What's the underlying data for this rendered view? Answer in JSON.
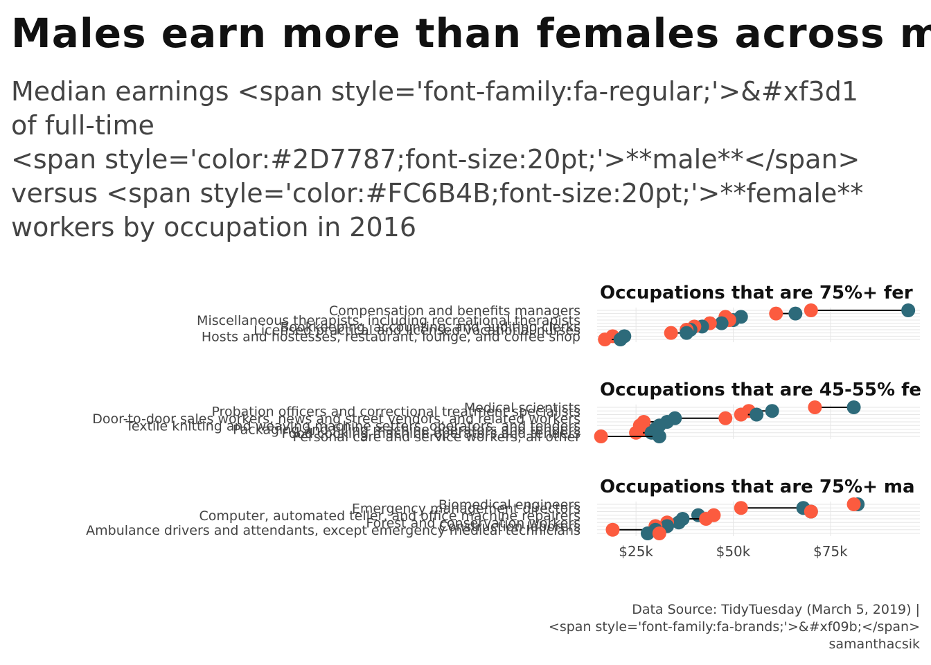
{
  "title": "Males earn more than females across mos",
  "subtitle_lines": [
    "Median earnings <span style='font-family:fa-regular;'>&#xf3d1",
    "of full-time",
    "<span style='color:#2D7787;font-size:20pt;'>**male**</span>",
    "versus <span style='color:#FC6B4B;font-size:20pt;'>**female**",
    "workers by occupation in 2016"
  ],
  "caption_lines": [
    "Data Source: TidyTuesday (March 5, 2019) |",
    "<span style='font-family:fa-brands;'>&#xf09b;</span>",
    "samanthacsik"
  ],
  "colors": {
    "male": "#2D6A7A",
    "female": "#FC5B3F",
    "grid": "#e6e6e6",
    "segment": "#000000"
  },
  "chart_data": {
    "type": "dumbbell",
    "x_tick_labels": [
      "$25k",
      "$50k",
      "$75k"
    ],
    "x_ticks": [
      25000,
      50000,
      75000
    ],
    "xlim": [
      15000,
      98000
    ],
    "grid": true,
    "panels": [
      {
        "strip_label": "Occupations that are 75%+ fer",
        "rows": [
          {
            "label": "Compensation and benefits managers",
            "male": 95000,
            "female": 70000
          },
          {
            "label": "",
            "male": 66000,
            "female": 61000
          },
          {
            "label": "",
            "male": 52000,
            "female": 48000
          },
          {
            "label": "Miscellaneous therapists, including recreational therapists",
            "male": 50000,
            "female": 49000
          },
          {
            "label": "",
            "male": 47000,
            "female": 44000
          },
          {
            "label": "Bookkeeping, accounting, and auditing clerks",
            "male": 42000,
            "female": 40000
          },
          {
            "label": "Licensed practical and licensed vocational nurses",
            "male": 39000,
            "female": 38000
          },
          {
            "label": "",
            "male": 38000,
            "female": 34000
          },
          {
            "label": "Hosts and hostesses, restaurant, lounge, and coffee shop",
            "male": 22000,
            "female": 19000
          },
          {
            "label": "",
            "male": 21000,
            "female": 17000
          }
        ]
      },
      {
        "strip_label": "Occupations that are 45-55% fe",
        "rows": [
          {
            "label": "Medical scientists",
            "male": 81000,
            "female": 71000
          },
          {
            "label": "Probation officers and correctional treatment specialists",
            "male": 60000,
            "female": 54000
          },
          {
            "label": "",
            "male": 56000,
            "female": 52000
          },
          {
            "label": "Door-to-door sales workers, news and street vendors, and related workers",
            "male": 35000,
            "female": 48000
          },
          {
            "label": "",
            "male": 33000,
            "female": 27000
          },
          {
            "label": "Textile knitting and weaving machine setters, operators, and tenders",
            "male": 31000,
            "female": 26000
          },
          {
            "label": "Packaging and filling machine operators and tenders",
            "male": 30000,
            "female": 27000
          },
          {
            "label": "Food cooking machine operators and tenders",
            "male": 29000,
            "female": 25000
          },
          {
            "label": "Personal care and service workers, all other",
            "male": 31000,
            "female": 16000
          }
        ]
      },
      {
        "strip_label": "Occupations that are 75%+ ma",
        "rows": [
          {
            "label": "Biomedical engineers",
            "male": 82000,
            "female": 81000
          },
          {
            "label": "Emergency management directors",
            "male": 68000,
            "female": 52000
          },
          {
            "label": "",
            "male": 70000,
            "female": 70000
          },
          {
            "label": "Computer, automated teller, and office machine repairers",
            "male": 41000,
            "female": 45000
          },
          {
            "label": "",
            "male": 37000,
            "female": 43000
          },
          {
            "label": "Forest and conservation workers",
            "male": 36000,
            "female": 33000
          },
          {
            "label": "Construction laborers",
            "male": 33000,
            "female": 30000
          },
          {
            "label": "Ambulance drivers and attendants, except emergency medical technicians",
            "male": 30000,
            "female": 19000
          },
          {
            "label": "",
            "male": 28000,
            "female": 31000
          }
        ]
      }
    ]
  }
}
